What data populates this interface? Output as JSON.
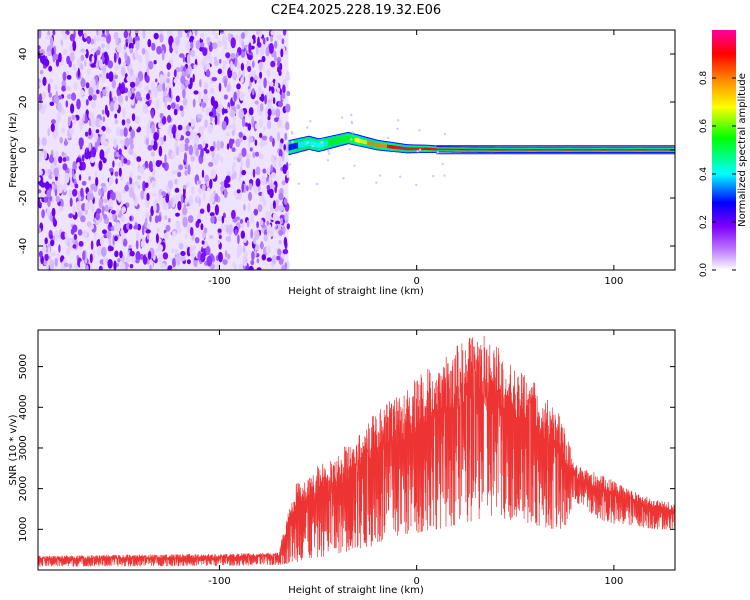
{
  "title": "C2E4.2025.228.19.32.E06",
  "chart_data": [
    {
      "type": "heatmap",
      "xlabel": "Height of straight line (km)",
      "ylabel": "Frequency (Hz)",
      "xlim": [
        -192,
        131
      ],
      "ylim": [
        -50,
        50
      ],
      "xticks": [
        -100,
        0,
        100
      ],
      "yticks": [
        -40,
        -20,
        0,
        20,
        40
      ],
      "noise_region_x": [
        -192,
        -65
      ],
      "signal_track": {
        "x": [
          -65,
          -60,
          -55,
          -50,
          -45,
          -40,
          -35,
          -30,
          -25,
          -20,
          -15,
          -10,
          -5,
          0,
          5,
          10,
          20,
          40,
          60,
          80,
          90,
          100,
          131
        ],
        "freq_hz": [
          1,
          2,
          3,
          2,
          3,
          4,
          5,
          4,
          3,
          2,
          1.5,
          1,
          0.5,
          0.5,
          0.5,
          0.3,
          0.2,
          0.1,
          0.1,
          0.1,
          0.1,
          0.1,
          0.1
        ],
        "amplitude": [
          0.35,
          0.4,
          0.45,
          0.5,
          0.55,
          0.6,
          0.65,
          0.7,
          0.8,
          0.85,
          0.9,
          0.92,
          0.95,
          0.97,
          0.97,
          0.97,
          0.97,
          0.97,
          0.97,
          0.97,
          0.95,
          0.97,
          0.97
        ]
      },
      "colorbar": {
        "label": "Normalized spectral amplitude",
        "range": [
          0,
          1
        ],
        "ticks": [
          "0.0",
          "0.2",
          "0.4",
          "0.6",
          "0.8"
        ],
        "tick_values": [
          0,
          0.2,
          0.4,
          0.6,
          0.8
        ],
        "colors": [
          "#ffffff",
          "#8000ff",
          "#0000ff",
          "#00ffff",
          "#00ff00",
          "#ffff00",
          "#ff8000",
          "#ff0000",
          "#ff00ff"
        ]
      }
    },
    {
      "type": "line",
      "xlabel": "Height of straight line (km)",
      "ylabel": "SNR (10 * v/v)",
      "xlim": [
        -192,
        131
      ],
      "ylim": [
        0,
        5900
      ],
      "xticks": [
        -100,
        0,
        100
      ],
      "yticks": [
        1000,
        2000,
        3000,
        4000,
        5000
      ],
      "color": "#ee3333",
      "envelope": {
        "x": [
          -192,
          -150,
          -100,
          -70,
          -60,
          -55,
          -50,
          -40,
          -30,
          -20,
          -10,
          0,
          10,
          20,
          30,
          35,
          40,
          50,
          60,
          70,
          75,
          80,
          90,
          100,
          110,
          120,
          131
        ],
        "upper": [
          350,
          380,
          400,
          430,
          2500,
          2300,
          2600,
          2900,
          3400,
          3900,
          4300,
          4700,
          5200,
          5500,
          5800,
          5800,
          5600,
          5000,
          4600,
          4000,
          3600,
          2600,
          2400,
          2200,
          1950,
          1750,
          1650
        ],
        "lower": [
          80,
          90,
          100,
          120,
          200,
          250,
          300,
          400,
          500,
          600,
          800,
          900,
          1000,
          1100,
          1200,
          1300,
          1300,
          1200,
          1100,
          1000,
          900,
          1700,
          1300,
          1100,
          1100,
          1000,
          1000
        ]
      }
    }
  ]
}
